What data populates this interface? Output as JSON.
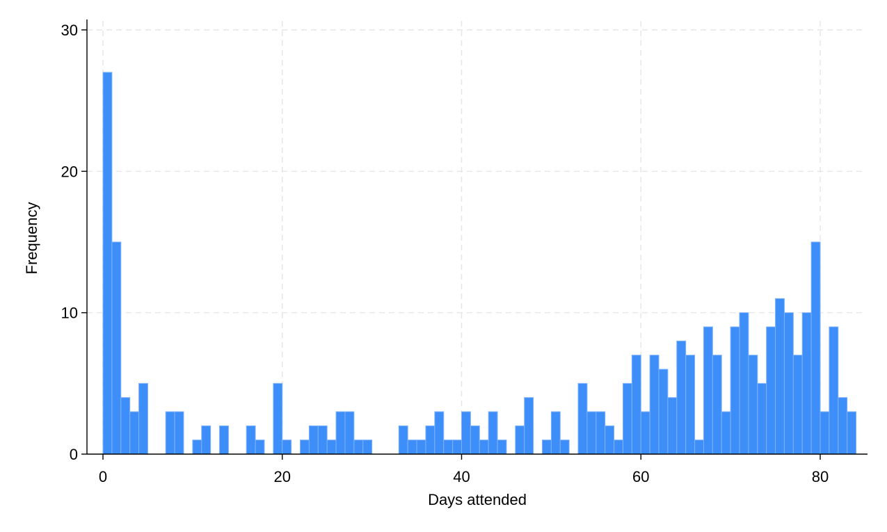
{
  "chart_data": {
    "type": "bar",
    "title": "",
    "xlabel": "Days attended",
    "ylabel": "Frequency",
    "xlim": [
      0,
      84
    ],
    "ylim": [
      0,
      30
    ],
    "xticks": [
      0,
      20,
      40,
      60,
      80
    ],
    "yticks": [
      0,
      10,
      20,
      30
    ],
    "grid": true,
    "legend": "none",
    "bar_color": "#3d8ef8",
    "bin_width": 1,
    "x": [
      0,
      1,
      2,
      3,
      4,
      5,
      6,
      7,
      8,
      9,
      10,
      11,
      12,
      13,
      14,
      15,
      16,
      17,
      18,
      19,
      20,
      21,
      22,
      23,
      24,
      25,
      26,
      27,
      28,
      29,
      30,
      31,
      32,
      33,
      34,
      35,
      36,
      37,
      38,
      39,
      40,
      41,
      42,
      43,
      44,
      45,
      46,
      47,
      48,
      49,
      50,
      51,
      52,
      53,
      54,
      55,
      56,
      57,
      58,
      59,
      60,
      61,
      62,
      63,
      64,
      65,
      66,
      67,
      68,
      69,
      70,
      71,
      72,
      73,
      74,
      75,
      76,
      77,
      78,
      79,
      80,
      81,
      82,
      83
    ],
    "values": [
      27,
      15,
      4,
      3,
      5,
      0,
      0,
      3,
      3,
      0,
      1,
      2,
      0,
      2,
      0,
      0,
      2,
      1,
      0,
      5,
      1,
      0,
      1,
      2,
      2,
      1,
      3,
      3,
      1,
      1,
      0,
      0,
      0,
      2,
      1,
      1,
      2,
      3,
      1,
      1,
      3,
      2,
      1,
      3,
      1,
      0,
      2,
      4,
      0,
      1,
      3,
      1,
      0,
      5,
      3,
      3,
      2,
      1,
      5,
      7,
      3,
      7,
      6,
      4,
      8,
      7,
      1,
      9,
      7,
      3,
      9,
      10,
      7,
      5,
      9,
      11,
      10,
      7,
      10,
      15,
      3,
      9,
      4,
      3
    ]
  }
}
